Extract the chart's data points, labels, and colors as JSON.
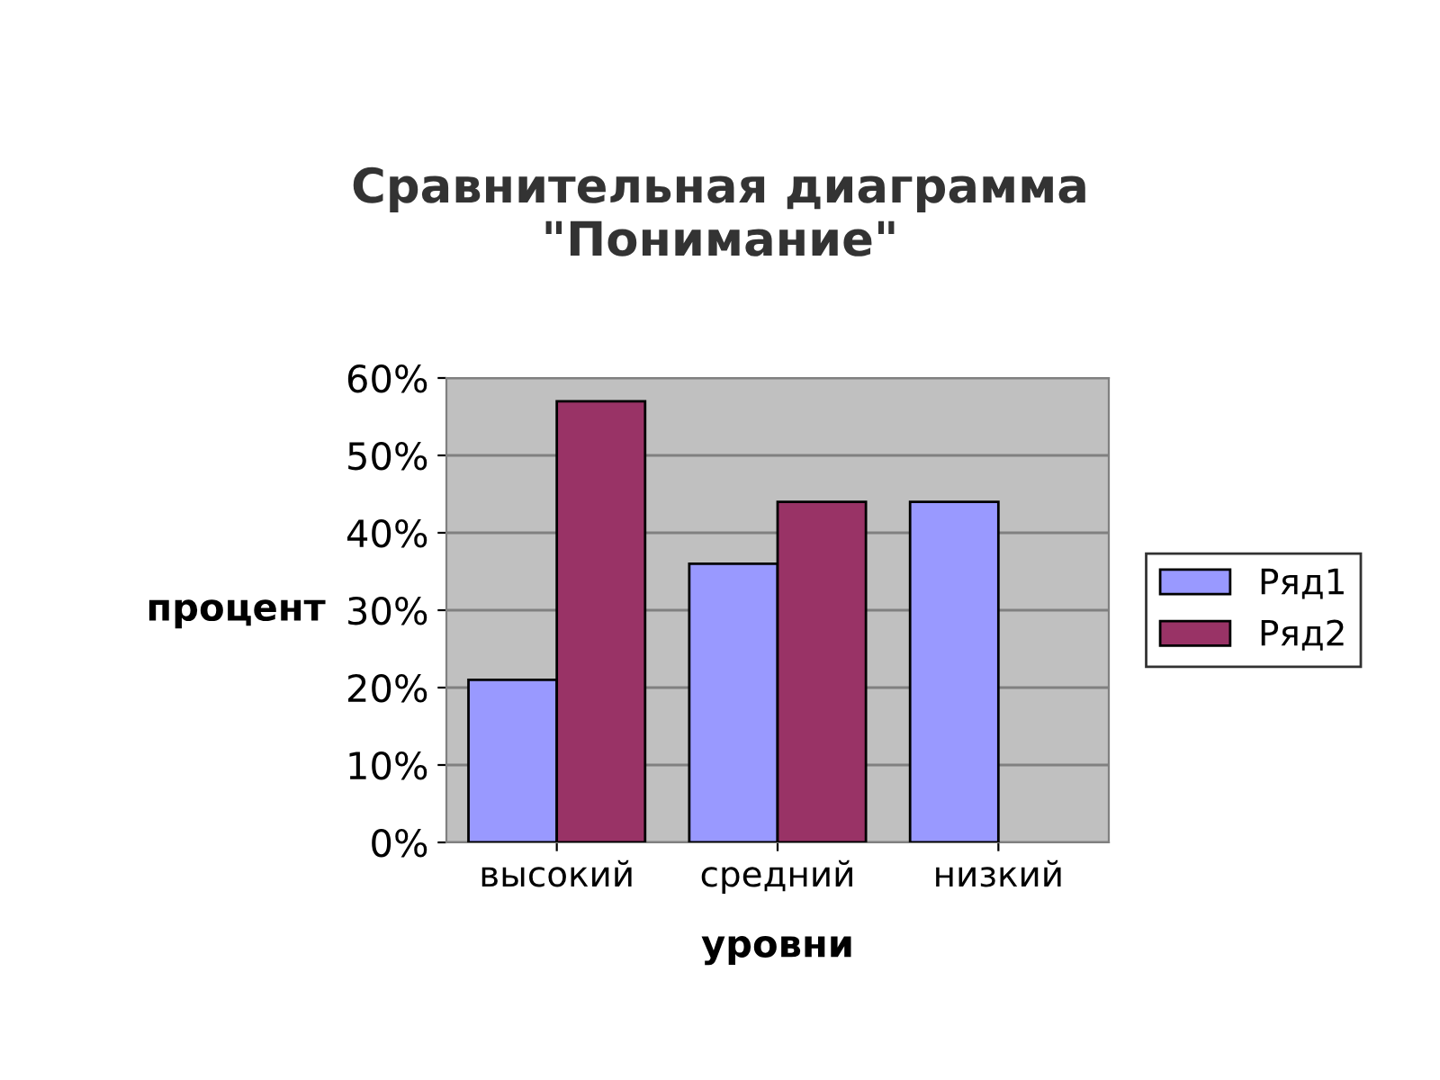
{
  "chart_data": {
    "type": "bar",
    "title": "Сравнительная диаграмма\n\"Понимание\"",
    "xlabel": "уровни",
    "ylabel": "процент",
    "categories": [
      "высокий",
      "средний",
      "низкий"
    ],
    "series": [
      {
        "name": "Ряд1",
        "color": "#9999ff",
        "values": [
          21,
          36,
          44
        ]
      },
      {
        "name": "Ряд2",
        "color": "#993366",
        "values": [
          57,
          44,
          null
        ]
      }
    ],
    "ylim": [
      0,
      60
    ],
    "yticks": [
      {
        "value": 0,
        "label": "0%"
      },
      {
        "value": 10,
        "label": "10%"
      },
      {
        "value": 20,
        "label": "20%"
      },
      {
        "value": 30,
        "label": "30%"
      },
      {
        "value": 40,
        "label": "40%"
      },
      {
        "value": 50,
        "label": "50%"
      },
      {
        "value": 60,
        "label": "60%"
      }
    ],
    "grid": "y",
    "legend": "right"
  }
}
